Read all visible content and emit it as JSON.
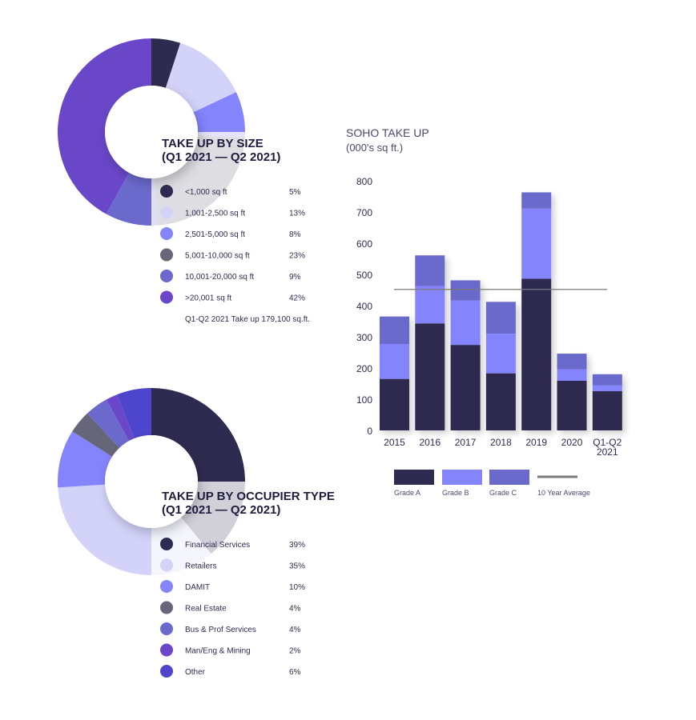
{
  "chart_data": [
    {
      "type": "pie",
      "title": "TAKE UP BY SIZE",
      "subtitle": "(Q1 2021 — Q2 2021)",
      "labels": [
        "<1,000 sq ft",
        "1,001-2,500 sq ft",
        "2,501-5,000 sq ft",
        "5,001-10,000 sq ft",
        "10,001-20,000 sq ft",
        ">20,001 sq ft"
      ],
      "values": [
        5,
        13,
        8,
        23,
        9,
        42
      ],
      "value_labels": [
        "5%",
        "13%",
        "8%",
        "23%",
        "9%",
        "42%"
      ],
      "colors": [
        "#2e2b50",
        "#d3d3fa",
        "#8484fd",
        "#66667a",
        "#6b69cc",
        "#6a47c9"
      ],
      "note": "Q1-Q2 2021 Take up 179,100 sq.ft."
    },
    {
      "type": "bar",
      "stacked": true,
      "title": "SOHO TAKE UP",
      "ylabel": "(000's sq ft.)",
      "categories": [
        "2015",
        "2016",
        "2017",
        "2018",
        "2019",
        "2020",
        "Q1-Q2 2021"
      ],
      "series": [
        {
          "name": "Grade A",
          "color": "#2e2b50",
          "values": [
            165,
            343,
            274,
            183,
            486,
            159,
            126
          ]
        },
        {
          "name": "Grade B",
          "color": "#8484fd",
          "values": [
            112,
            120,
            142,
            127,
            225,
            37,
            18
          ]
        },
        {
          "name": "Grade C",
          "color": "#6b69cc",
          "values": [
            88,
            98,
            65,
            102,
            52,
            50,
            36
          ]
        }
      ],
      "reference_line": {
        "name": "10 Year Average",
        "value": 452,
        "color": "#7a7a7a"
      },
      "ylim": [
        0,
        800
      ],
      "yticks": [
        0,
        100,
        200,
        300,
        400,
        500,
        600,
        700,
        800
      ],
      "grid": false,
      "legend": "bottom"
    },
    {
      "type": "pie",
      "title": "TAKE UP BY OCCUPIER TYPE",
      "subtitle": "(Q1 2021 — Q2 2021)",
      "labels": [
        "Financial Services",
        "Retailers",
        "DAMIT",
        "Real Estate",
        "Bus & Prof Services",
        "Man/Eng & Mining",
        "Other"
      ],
      "values": [
        39,
        35,
        10,
        4,
        4,
        2,
        6
      ],
      "value_labels": [
        "39%",
        "35%",
        "10%",
        "4%",
        "4%",
        "2%",
        "6%"
      ],
      "colors": [
        "#2e2b50",
        "#d3d3fa",
        "#8484fd",
        "#66667a",
        "#6b69cc",
        "#6a47c9",
        "#4d45cc"
      ]
    }
  ]
}
